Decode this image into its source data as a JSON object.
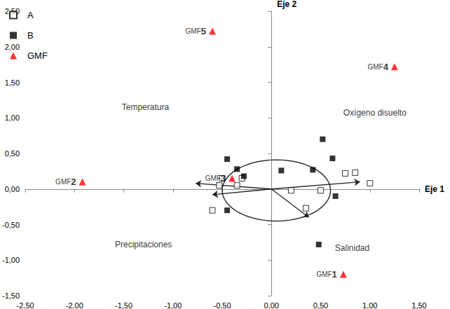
{
  "chart_data": {
    "type": "scatter",
    "xlabel": "Eje 1",
    "ylabel": "Eje 2",
    "xlim": [
      -2.5,
      1.5
    ],
    "ylim": [
      -1.5,
      2.5
    ],
    "xticks": [
      {
        "value": -2.5,
        "label": "-2,50"
      },
      {
        "value": -2,
        "label": "-2,00"
      },
      {
        "value": -1.5,
        "label": "-1,50"
      },
      {
        "value": -1,
        "label": "-1,00"
      },
      {
        "value": -0.5,
        "label": "-0,50"
      },
      {
        "value": 0,
        "label": "0,00"
      },
      {
        "value": 0.5,
        "label": "0,50"
      },
      {
        "value": 1,
        "label": "1,00"
      },
      {
        "value": 1.5,
        "label": "1,50"
      }
    ],
    "yticks": [
      {
        "value": -1.5,
        "label": "-1,50"
      },
      {
        "value": -1,
        "label": "-1,00"
      },
      {
        "value": -0.5,
        "label": "-0,50"
      },
      {
        "value": 0,
        "label": "0,00"
      },
      {
        "value": 0.5,
        "label": "0,50"
      },
      {
        "value": 1,
        "label": "1,00"
      },
      {
        "value": 1.5,
        "label": "1,50"
      },
      {
        "value": 2,
        "label": "2,00"
      },
      {
        "value": 2.5,
        "label": "2,50"
      }
    ],
    "grid": false,
    "legend": "top-left",
    "series": [
      {
        "name": "A",
        "color": "#000000",
        "marker": "open_square",
        "x": [
          -0.5,
          -0.53,
          -0.6,
          -0.3,
          -0.35,
          0.2,
          0.5,
          0.35,
          0.75,
          0.85,
          1.0
        ],
        "y": [
          0.15,
          0.05,
          -0.3,
          0.15,
          0.05,
          -0.02,
          -0.02,
          -0.27,
          0.22,
          0.23,
          0.08
        ]
      },
      {
        "name": "B",
        "color": "#000000",
        "marker": "square",
        "x": [
          -0.45,
          -0.35,
          -0.28,
          -0.45,
          0.1,
          0.42,
          0.52,
          0.62,
          0.65,
          0.48
        ],
        "y": [
          0.42,
          0.28,
          0.18,
          -0.3,
          0.26,
          0.27,
          0.7,
          0.43,
          -0.1,
          -0.78
        ]
      },
      {
        "name": "GMF",
        "color": "#ff0000",
        "marker": "triangle",
        "x": [
          0.73,
          -1.92,
          -0.4,
          1.25,
          -0.6
        ],
        "y": [
          -1.2,
          0.1,
          0.15,
          1.72,
          2.22
        ],
        "point_labels": [
          "GMF1",
          "GMF2",
          "GMF3",
          "GMF4",
          "GMF5"
        ]
      }
    ],
    "vectors": [
      {
        "x": [
          0,
          -0.77
        ],
        "y": [
          0,
          0.08
        ]
      },
      {
        "x": [
          0,
          -0.6
        ],
        "y": [
          0,
          -0.08
        ]
      },
      {
        "x": [
          0,
          0.9
        ],
        "y": [
          0,
          0.1
        ]
      },
      {
        "x": [
          0,
          0.38
        ],
        "y": [
          0,
          -0.4
        ]
      }
    ],
    "ellipse": {
      "x": 0.05,
      "y": -0.02,
      "rx": 0.55,
      "ry": 0.43
    },
    "annotations": [
      {
        "text": "Temperatura",
        "x": -1.28,
        "y": 1.15
      },
      {
        "text": "Oxígeno disuelto",
        "x": 1.05,
        "y": 1.07
      },
      {
        "text": "Precipitaciones",
        "x": -1.3,
        "y": -0.78
      },
      {
        "text": "Salinidad",
        "x": 0.82,
        "y": -0.83
      }
    ]
  }
}
